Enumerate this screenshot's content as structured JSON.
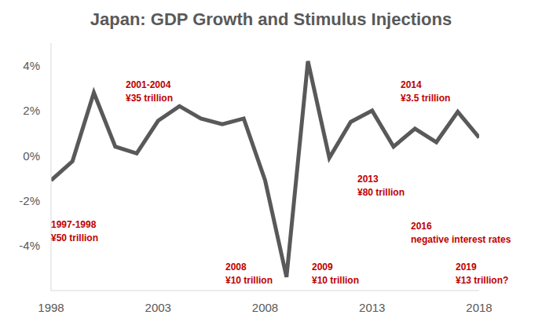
{
  "chart_data": {
    "type": "line",
    "title": "Japan: GDP Growth and Stimulus Injections",
    "x": [
      1998,
      1999,
      2000,
      2001,
      2002,
      2003,
      2004,
      2005,
      2006,
      2007,
      2008,
      2009,
      2010,
      2011,
      2012,
      2013,
      2014,
      2015,
      2016,
      2017,
      2018
    ],
    "values": [
      -1.1,
      -0.25,
      2.8,
      0.4,
      0.1,
      1.55,
      2.2,
      1.65,
      1.4,
      1.65,
      -1.1,
      -5.4,
      4.2,
      -0.1,
      1.5,
      2.0,
      0.4,
      1.2,
      0.6,
      1.95,
      0.8
    ],
    "color": "#595959",
    "xlim": [
      1998,
      2018
    ],
    "xticks": [
      1998,
      2003,
      2008,
      2013,
      2018
    ],
    "ylim": [
      -6,
      5
    ],
    "yticks": [
      {
        "value": -4,
        "label": "-4%"
      },
      {
        "value": -2,
        "label": "-2%"
      },
      {
        "value": 0,
        "label": "0%"
      },
      {
        "value": 2,
        "label": "2%"
      },
      {
        "value": 4,
        "label": "4%"
      }
    ],
    "grid": false,
    "annotations": [
      {
        "lines": [
          "1997-1998",
          "¥50 trillion"
        ]
      },
      {
        "lines": [
          "2001-2004",
          "¥35 trillion"
        ]
      },
      {
        "lines": [
          "2008",
          "¥10 trillion"
        ]
      },
      {
        "lines": [
          "2009",
          "¥10 trillion"
        ]
      },
      {
        "lines": [
          "2013",
          "¥80 trillion"
        ]
      },
      {
        "lines": [
          "2014",
          "¥3.5 trillion"
        ]
      },
      {
        "lines": [
          "2016",
          "negative interest rates"
        ]
      },
      {
        "lines": [
          "2019",
          "¥13 trillion?"
        ]
      }
    ]
  }
}
